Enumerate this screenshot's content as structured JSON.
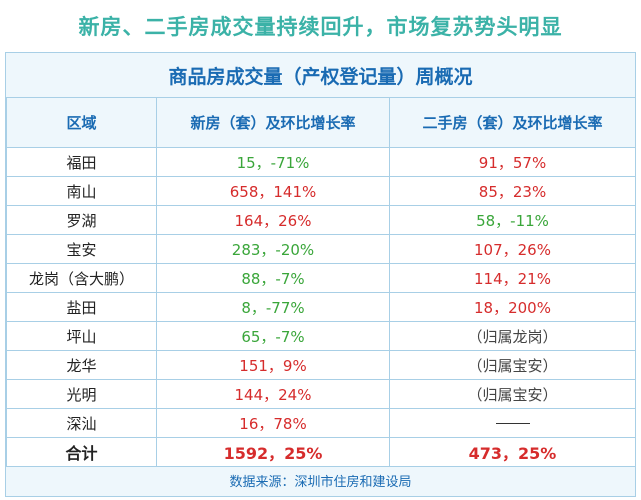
{
  "headline": "新房、二手房成交量持续回升，市场复苏势头明显",
  "subtitle": "商品房成交量（产权登记量）周概况",
  "columns": [
    "区域",
    "新房（套）及环比增长率",
    "二手房（套）及环比增长率"
  ],
  "rows": [
    {
      "region": "福田",
      "new": "15，-71%",
      "second": "91，57%"
    },
    {
      "region": "南山",
      "new": "658，141%",
      "second": "85，23%"
    },
    {
      "region": "罗湖",
      "new": "164，26%",
      "second": "58，-11%"
    },
    {
      "region": "宝安",
      "new": "283，-20%",
      "second": "107，26%"
    },
    {
      "region": "龙岗（含大鹏）",
      "new": "88，-7%",
      "second": "114，21%"
    },
    {
      "region": "盐田",
      "new": "8，-77%",
      "second": "18，200%"
    },
    {
      "region": "坪山",
      "new": "65，-7%",
      "second": "（归属龙岗）"
    },
    {
      "region": "龙华",
      "new": "151，9%",
      "second": "（归属宝安）"
    },
    {
      "region": "光明",
      "new": "144，24%",
      "second": "（归属宝安）"
    },
    {
      "region": "深汕",
      "new": "16，78%",
      "second": ""
    }
  ],
  "total": {
    "region": "合计",
    "new": "1592，25%",
    "second": "473，25%"
  },
  "source": "数据来源：深圳市住房和建设局",
  "colors": {
    "headline": "#3bb2a7",
    "header_text": "#1a6bb3",
    "increase": "#d62c2c",
    "decrease": "#3aa63a"
  }
}
